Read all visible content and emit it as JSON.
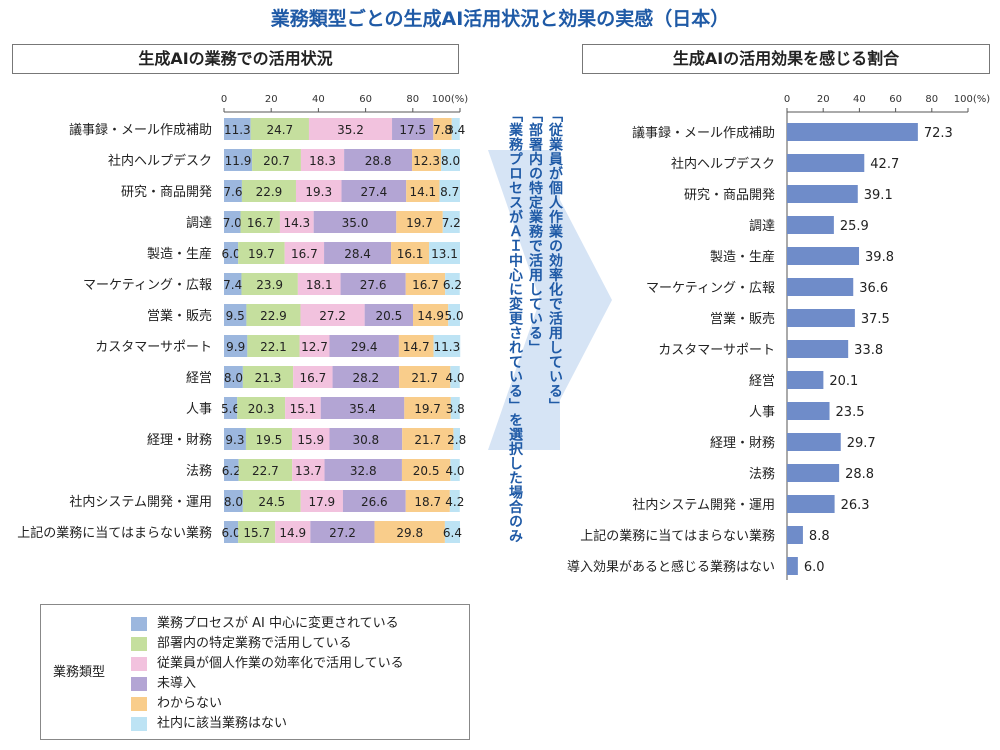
{
  "title": "業務類型ごとの生成AI活用状況と効果の実感（日本）",
  "left_panel_title": "生成AIの業務での活用状況",
  "right_panel_title": "生成AIの活用効果を感じる割合",
  "note_lines": [
    "「従業員が個人作業の効率化で活用している」",
    "「部署内の特定業務で活用している」",
    "「業務プロセスがＡＩ中心に変更されている」を選択した場合のみ"
  ],
  "legend_title": "業務類型",
  "colors": {
    "title": "#1f5aa6",
    "right_bar": "#6f8cc9",
    "arrow": "#cfdff3"
  },
  "chart_data": [
    {
      "type": "bar",
      "orientation": "horizontal",
      "stacked": true,
      "title": "生成AIの業務での活用状況",
      "xlim": [
        0,
        100
      ],
      "x_ticks": [
        "0",
        "20",
        "40",
        "60",
        "80",
        "100(%)"
      ],
      "categories": [
        "議事録・メール作成補助",
        "社内ヘルプデスク",
        "研究・商品開発",
        "調達",
        "製造・生産",
        "マーケティング・広報",
        "営業・販売",
        "カスタマーサポート",
        "経営",
        "人事",
        "経理・財務",
        "法務",
        "社内システム開発・運用",
        "上記の業務に当てはまらない業務"
      ],
      "series": [
        {
          "name": "業務プロセスが AI 中心に変更されている",
          "color": "#9cb7de",
          "values": [
            11.3,
            11.9,
            7.6,
            7.0,
            6.0,
            7.4,
            9.5,
            9.9,
            8.0,
            5.6,
            9.3,
            6.2,
            8.0,
            6.0
          ]
        },
        {
          "name": "部署内の特定業務で活用している",
          "color": "#c5df9e",
          "values": [
            24.7,
            20.7,
            22.9,
            16.7,
            19.7,
            23.9,
            22.9,
            22.1,
            21.3,
            20.3,
            19.5,
            22.7,
            24.5,
            15.7
          ]
        },
        {
          "name": "従業員が個人作業の効率化で活用している",
          "color": "#f2c2de",
          "values": [
            35.2,
            18.3,
            19.3,
            14.3,
            16.7,
            18.1,
            27.2,
            12.7,
            16.7,
            15.1,
            15.9,
            13.7,
            17.9,
            14.9
          ]
        },
        {
          "name": "未導入",
          "color": "#b3a5d4",
          "values": [
            17.5,
            28.8,
            27.4,
            35.0,
            28.4,
            27.6,
            20.5,
            29.4,
            28.2,
            35.4,
            30.8,
            32.8,
            26.6,
            27.2
          ]
        },
        {
          "name": "わからない",
          "color": "#f9cd8b",
          "values": [
            7.8,
            12.3,
            14.1,
            19.7,
            16.1,
            16.7,
            14.9,
            14.7,
            21.7,
            19.7,
            21.7,
            20.5,
            18.7,
            29.8
          ]
        },
        {
          "name": "社内に該当業務はない",
          "color": "#bde3f4",
          "values": [
            3.4,
            8.0,
            8.7,
            7.2,
            13.1,
            6.2,
            5.0,
            11.3,
            4.0,
            3.8,
            2.8,
            4.0,
            4.2,
            6.4
          ]
        }
      ]
    },
    {
      "type": "bar",
      "orientation": "horizontal",
      "title": "生成AIの活用効果を感じる割合",
      "xlim": [
        0,
        100
      ],
      "x_ticks": [
        "0",
        "20",
        "40",
        "60",
        "80",
        "100(%)"
      ],
      "categories": [
        "議事録・メール作成補助",
        "社内ヘルプデスク",
        "研究・商品開発",
        "調達",
        "製造・生産",
        "マーケティング・広報",
        "営業・販売",
        "カスタマーサポート",
        "経営",
        "人事",
        "経理・財務",
        "法務",
        "社内システム開発・運用",
        "上記の業務に当てはまらない業務",
        "導入効果があると感じる業務はない"
      ],
      "values": [
        72.3,
        42.7,
        39.1,
        25.9,
        39.8,
        36.6,
        37.5,
        33.8,
        20.1,
        23.5,
        29.7,
        28.8,
        26.3,
        8.8,
        6.0
      ]
    }
  ]
}
